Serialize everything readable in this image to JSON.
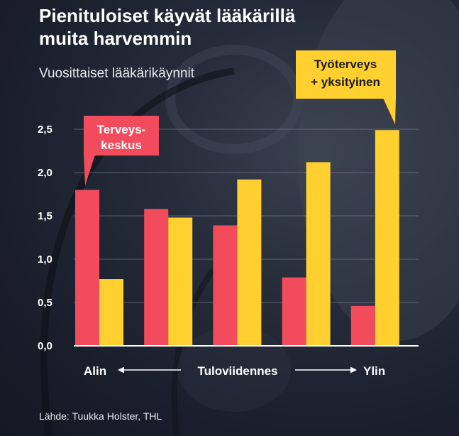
{
  "title_line1": "Pienituloiset käyvät lääkärillä",
  "title_line2": "muita harvemmin",
  "subtitle": "Vuosittaiset lääkärikäynnit",
  "source": "Lähde: Tuukka Holster, THL",
  "colors": {
    "terveyskeskus": "#f24b5b",
    "tyoterveys": "#ffd02f",
    "callout_text_dark": "#1a1a1a"
  },
  "callouts": {
    "terveyskeskus": [
      "Terveys-",
      "keskus"
    ],
    "tyoterveys": [
      "Työterveys",
      "+ yksityinen"
    ]
  },
  "chart_data": {
    "type": "bar",
    "categories": [
      "1",
      "2",
      "3",
      "4",
      "5"
    ],
    "xlabel": "Tuloviidennes",
    "x_end_labels": {
      "left": "Alin",
      "right": "Ylin"
    },
    "ylim": [
      0,
      2.5
    ],
    "y_ticks": [
      "0,0",
      "0,5",
      "1,0",
      "1,5",
      "2,0",
      "2,5"
    ],
    "grid": true,
    "series": [
      {
        "name": "Terveyskeskus",
        "values": [
          1.8,
          1.58,
          1.39,
          0.79,
          0.46
        ]
      },
      {
        "name": "Työterveys + yksityinen",
        "values": [
          0.77,
          1.48,
          1.92,
          2.12,
          2.49
        ]
      }
    ]
  }
}
